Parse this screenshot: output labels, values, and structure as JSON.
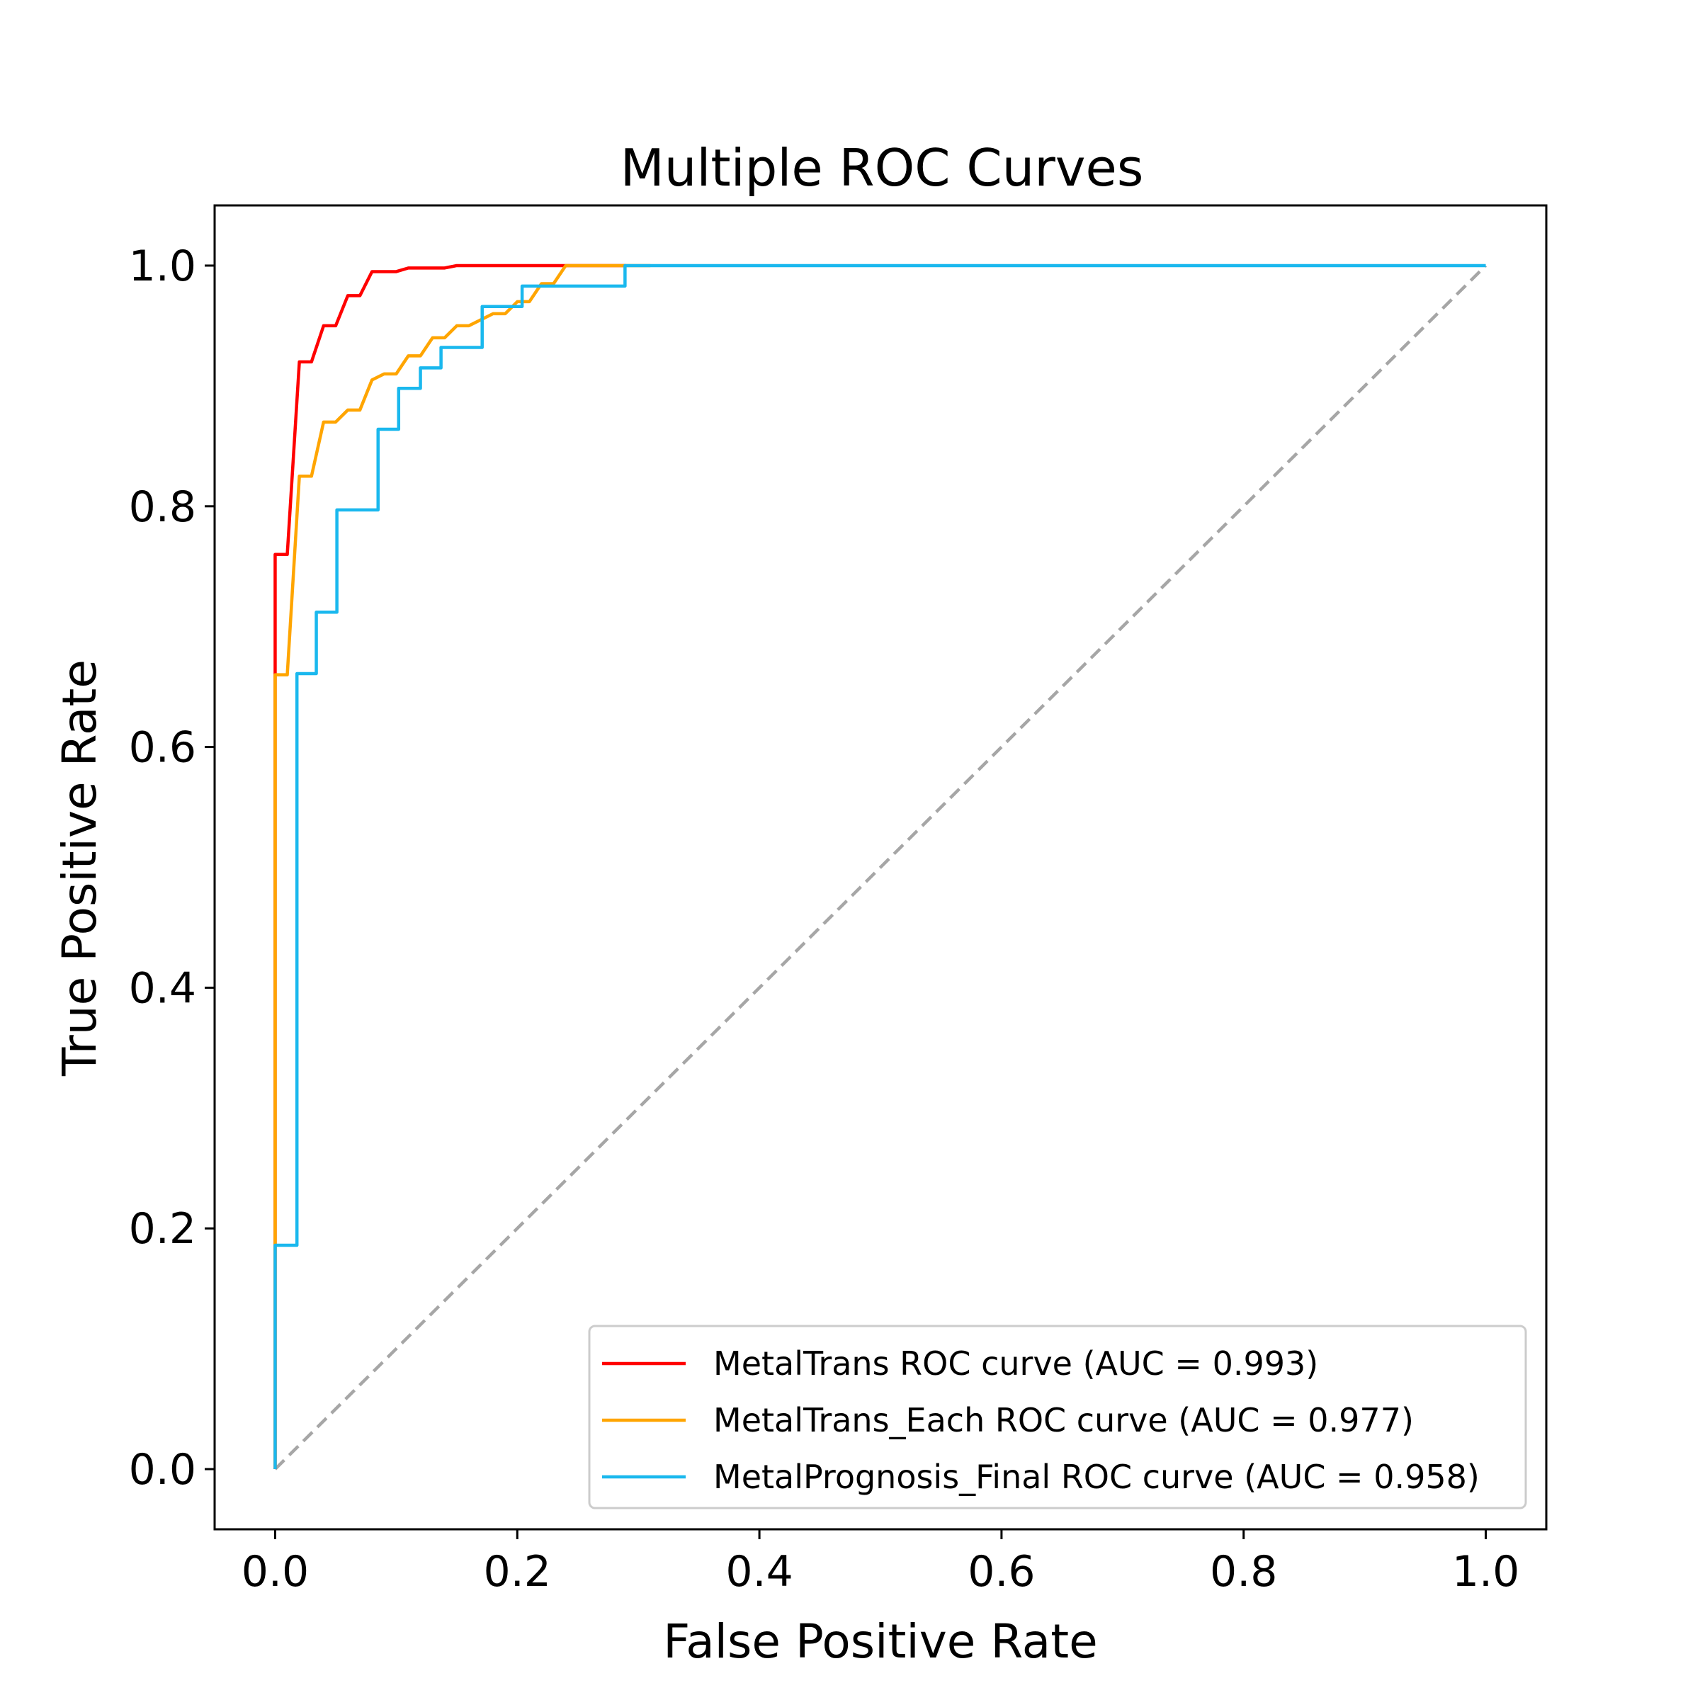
{
  "chart_data": {
    "type": "line",
    "title": "Multiple ROC Curves",
    "xlabel": "False Positive Rate",
    "ylabel": "True Positive Rate",
    "xlim": [
      -0.05,
      1.05
    ],
    "ylim": [
      -0.05,
      1.05
    ],
    "xticks": [
      0.0,
      0.2,
      0.4,
      0.6,
      0.8,
      1.0
    ],
    "xtick_labels": [
      "0.0",
      "0.2",
      "0.4",
      "0.6",
      "0.8",
      "1.0"
    ],
    "yticks": [
      0.0,
      0.2,
      0.4,
      0.6,
      0.8,
      1.0
    ],
    "ytick_labels": [
      "0.0",
      "0.2",
      "0.4",
      "0.6",
      "0.8",
      "1.0"
    ],
    "grid": false,
    "legend_position": "lower-right",
    "diagonal": {
      "x": [
        0,
        1
      ],
      "y": [
        0,
        1
      ],
      "color": "#a6a6a6",
      "style": "dashed"
    },
    "series": [
      {
        "name": "MetalTrans ROC curve (AUC = 0.993)",
        "color": "#ff0000",
        "x": [
          0.0,
          0.0,
          0.0,
          0.01,
          0.02,
          0.03,
          0.04,
          0.05,
          0.06,
          0.07,
          0.08,
          0.095,
          0.1,
          0.11,
          0.14,
          0.15,
          0.29
        ],
        "y": [
          0.0,
          0.665,
          0.76,
          0.76,
          0.92,
          0.92,
          0.95,
          0.95,
          0.975,
          0.975,
          0.995,
          0.995,
          0.995,
          0.998,
          0.998,
          1.0,
          1.0
        ]
      },
      {
        "name": "MetalTrans_Each ROC curve (AUC = 0.977)",
        "color": "#ffa500",
        "x": [
          0.0,
          0.0,
          0.0,
          0.01,
          0.02,
          0.03,
          0.04,
          0.05,
          0.06,
          0.07,
          0.08,
          0.09,
          0.1,
          0.11,
          0.12,
          0.13,
          0.14,
          0.15,
          0.16,
          0.17,
          0.18,
          0.19,
          0.2,
          0.21,
          0.22,
          0.23,
          0.24,
          0.25,
          0.3,
          0.31
        ],
        "y": [
          0.0,
          0.19,
          0.66,
          0.66,
          0.825,
          0.825,
          0.87,
          0.87,
          0.88,
          0.88,
          0.905,
          0.91,
          0.91,
          0.925,
          0.925,
          0.94,
          0.94,
          0.95,
          0.95,
          0.955,
          0.96,
          0.96,
          0.97,
          0.97,
          0.985,
          0.985,
          1.0,
          1.0,
          1.0,
          1.0
        ]
      },
      {
        "name": "MetalPrognosis_Final ROC curve (AUC = 0.958)",
        "color": "#1ab8ee",
        "x": [
          0.0,
          0.0,
          0.018,
          0.018,
          0.034,
          0.034,
          0.051,
          0.051,
          0.085,
          0.085,
          0.102,
          0.102,
          0.12,
          0.12,
          0.137,
          0.137,
          0.171,
          0.171,
          0.204,
          0.204,
          0.221,
          0.221,
          0.289,
          0.289,
          1.0
        ],
        "y": [
          0.0,
          0.186,
          0.186,
          0.661,
          0.661,
          0.712,
          0.712,
          0.797,
          0.797,
          0.864,
          0.864,
          0.898,
          0.898,
          0.915,
          0.915,
          0.932,
          0.932,
          0.966,
          0.966,
          0.983,
          0.983,
          0.983,
          0.983,
          1.0,
          1.0
        ]
      }
    ]
  }
}
